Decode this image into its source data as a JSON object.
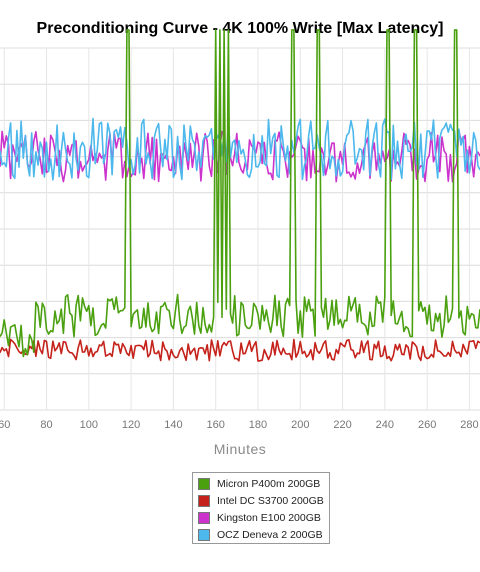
{
  "chart_data": {
    "type": "line",
    "title": "Preconditioning Curve - 4K 100% Write [Max Latency]",
    "xlabel": "Minutes",
    "ylabel": "",
    "xlim": [
      58,
      285
    ],
    "ylim": [
      0,
      10
    ],
    "x_ticks": [
      60,
      80,
      100,
      120,
      140,
      160,
      180,
      200,
      220,
      240,
      260,
      280
    ],
    "grid": true,
    "legend_position": "bottom-center",
    "series": [
      {
        "name": "Micron P400m 200GB",
        "color": "#4aa00f",
        "seed": 17,
        "base": 2.6,
        "amp": 0.6,
        "segments": [
          [
            58,
            74,
            1.9
          ]
        ],
        "spikes": [
          [
            118,
            10.5
          ],
          [
            119,
            10.5
          ],
          [
            160,
            10.5
          ],
          [
            162,
            10.5
          ],
          [
            164,
            10.5
          ],
          [
            166,
            10.5
          ],
          [
            196,
            10.5
          ],
          [
            197,
            10.5
          ],
          [
            208,
            10.5
          ],
          [
            209,
            10.5
          ],
          [
            241,
            10.5
          ],
          [
            242,
            10.5
          ],
          [
            254,
            10.5
          ],
          [
            255,
            10.5
          ],
          [
            273,
            10.5
          ],
          [
            274,
            10.5
          ]
        ]
      },
      {
        "name": "Intel DC S3700 200GB",
        "color": "#c4221a",
        "seed": 7,
        "base": 1.65,
        "amp": 0.3,
        "segments": [],
        "spikes": []
      },
      {
        "name": "Kingston E100 200GB",
        "color": "#cc33cc",
        "seed": 3,
        "base": 7.0,
        "amp": 0.7,
        "segments": [],
        "spikes": []
      },
      {
        "name": "OCZ Deneva 2 200GB",
        "color": "#4db8ec",
        "seed": 11,
        "base": 7.2,
        "amp": 0.85,
        "segments": [],
        "spikes": []
      }
    ]
  }
}
